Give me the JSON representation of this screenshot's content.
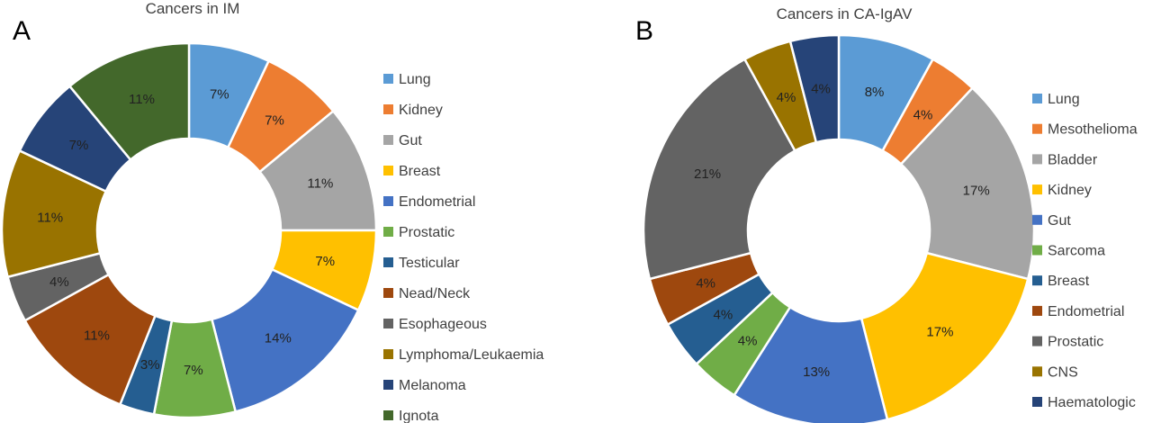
{
  "chart_data": [
    {
      "type": "pie",
      "panel": "A",
      "title": "Cancers in IM",
      "legend_position": "right",
      "donut": true,
      "categories": [
        "Lung",
        "Kidney",
        "Gut",
        "Breast",
        "Endometrial",
        "Prostatic",
        "Testicular",
        "Nead/Neck",
        "Esophageous",
        "Lymphoma/Leukaemia",
        "Melanoma",
        "Ignota"
      ],
      "values": [
        7,
        7,
        11,
        7,
        14,
        7,
        3,
        11,
        4,
        11,
        7,
        11
      ],
      "labels": [
        "7%",
        "7%",
        "11%",
        "7%",
        "14%",
        "7%",
        "3%",
        "11%",
        "4%",
        "11%",
        "7%",
        "11%"
      ],
      "colors": [
        "#5B9BD5",
        "#ED7D31",
        "#A5A5A5",
        "#FFC000",
        "#4472C4",
        "#70AD47",
        "#255E91",
        "#9E480E",
        "#636363",
        "#997300",
        "#264478",
        "#43682B"
      ]
    },
    {
      "type": "pie",
      "panel": "B",
      "title": "Cancers in CA-IgAV",
      "legend_position": "right",
      "donut": true,
      "categories": [
        "Lung",
        "Mesothelioma",
        "Bladder",
        "Kidney",
        "Gut",
        "Sarcoma",
        "Breast",
        "Endometrial",
        "Prostatic",
        "CNS",
        "Haematologic"
      ],
      "values": [
        8,
        4,
        17,
        17,
        13,
        4,
        4,
        4,
        21,
        4,
        4
      ],
      "labels": [
        "8%",
        "4%",
        "17%",
        "17%",
        "13%",
        "4%",
        "4%",
        "4%",
        "21%",
        "4%",
        "4%"
      ],
      "colors": [
        "#5B9BD5",
        "#ED7D31",
        "#A5A5A5",
        "#FFC000",
        "#4472C4",
        "#70AD47",
        "#255E91",
        "#9E480E",
        "#636363",
        "#997300",
        "#264478"
      ]
    }
  ]
}
